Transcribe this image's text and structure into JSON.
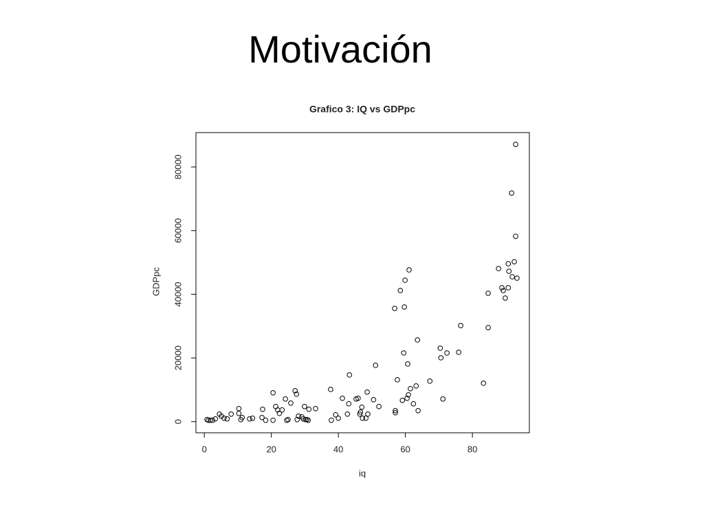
{
  "slide_title": "Motivación",
  "chart_data": {
    "type": "scatter",
    "title": "Grafico 3: IQ vs GDPpc",
    "x_label": "iq",
    "y_label": "GDPpc",
    "x": [
      0.8,
      1.2,
      1.8,
      2.5,
      3.3,
      4.5,
      5.1,
      5.9,
      6.8,
      8.0,
      10.3,
      10.3,
      10.9,
      11.3,
      13.5,
      14.4,
      17.2,
      17.4,
      18.3,
      20.5,
      20.5,
      21.3,
      21.9,
      22.4,
      23.2,
      24.2,
      24.6,
      25.0,
      25.8,
      27.1,
      27.5,
      27.7,
      28.1,
      29.1,
      29.5,
      29.9,
      30.2,
      30.6,
      31.0,
      31.2,
      33.2,
      37.7,
      37.9,
      39.2,
      40.0,
      41.2,
      42.7,
      43.1,
      43.3,
      45.3,
      45.9,
      46.4,
      46.6,
      47.0,
      47.2,
      48.2,
      48.6,
      48.8,
      50.5,
      51.1,
      52.1,
      56.8,
      57.0,
      57.0,
      57.6,
      58.5,
      59.1,
      59.5,
      59.7,
      59.9,
      60.5,
      60.7,
      60.9,
      61.1,
      61.5,
      62.4,
      63.2,
      63.6,
      63.8,
      67.3,
      70.4,
      70.6,
      71.2,
      72.4,
      75.9,
      76.5,
      83.3,
      84.7,
      84.7,
      87.8,
      88.8,
      89.2,
      89.8,
      90.7,
      90.7,
      90.9,
      91.7,
      91.9,
      92.5,
      92.9,
      92.9,
      93.3
    ],
    "values": [
      650,
      430,
      430,
      430,
      860,
      2370,
      1720,
      1080,
      860,
      2370,
      4100,
      2590,
      650,
      1290,
      860,
      1080,
      1290,
      3880,
      430,
      9060,
      430,
      4740,
      3670,
      2590,
      3670,
      7110,
      430,
      650,
      5820,
      9700,
      8620,
      650,
      1720,
      1510,
      860,
      4740,
      650,
      650,
      430,
      3880,
      4100,
      10130,
      430,
      2160,
      1080,
      7330,
      2370,
      5610,
      14660,
      7110,
      7330,
      2370,
      3020,
      4530,
      1080,
      1080,
      9270,
      2370,
      6900,
      17680,
      4740,
      35570,
      3450,
      2800,
      13150,
      41180,
      6680,
      21560,
      36010,
      44410,
      7330,
      18110,
      8410,
      47650,
      10350,
      5610,
      11210,
      25660,
      3450,
      12720,
      23070,
      20050,
      7110,
      21560,
      21780,
      30180,
      12070,
      40320,
      29540,
      48080,
      42040,
      41180,
      38810,
      42040,
      49590,
      47220,
      71800,
      45490,
      50230,
      58210,
      87100,
      45060
    ],
    "color": "#000000",
    "xlim": [
      -2.5,
      97
    ],
    "ylim": [
      -3500,
      90800
    ],
    "xticks": [
      0,
      20,
      40,
      60,
      80
    ],
    "yticks": [
      0,
      20000,
      40000,
      60000,
      80000
    ],
    "grid": false
  }
}
